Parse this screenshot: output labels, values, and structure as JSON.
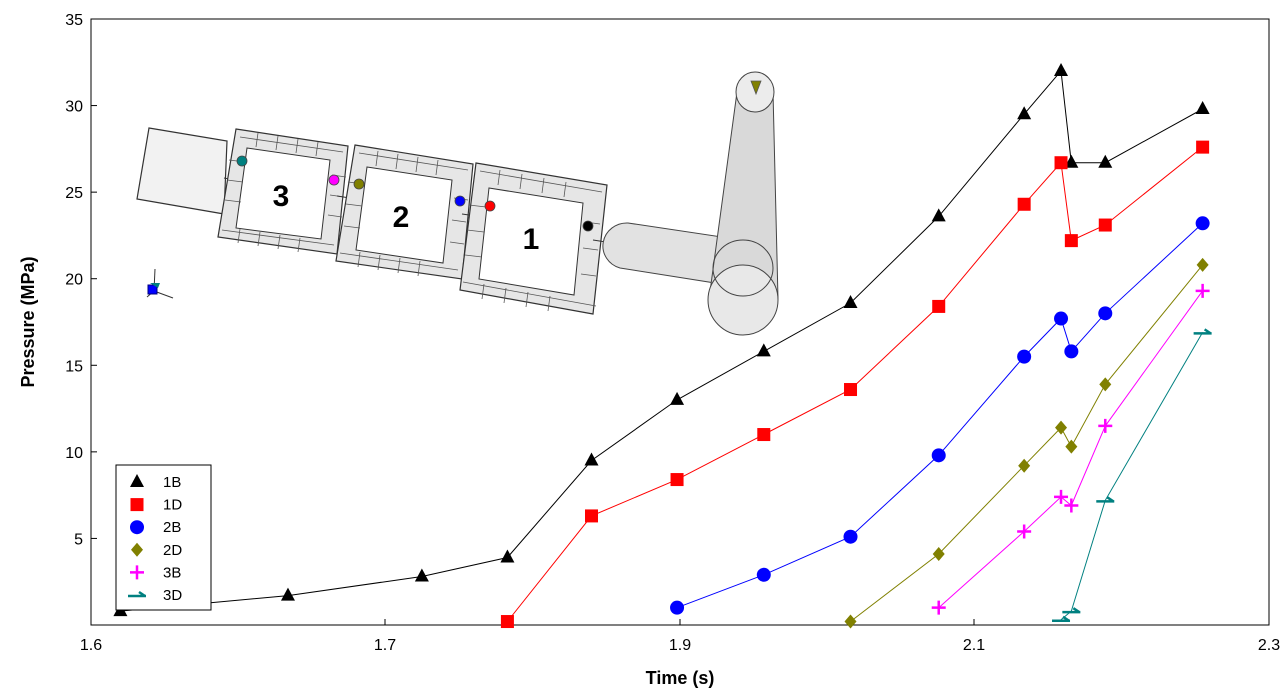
{
  "chart_data": {
    "type": "line",
    "title": "",
    "xlabel": "Time (s)",
    "ylabel": "Pressure (MPa)",
    "xlim": [
      1.6,
      2.3
    ],
    "ylim": [
      0,
      35
    ],
    "xticks": [
      "1.6",
      "1.7",
      "1.9",
      "2.1",
      "2.3"
    ],
    "xtick_values": [
      1.6,
      1.7,
      1.9,
      2.1,
      2.3
    ],
    "yticks": [
      "5",
      "10",
      "15",
      "20",
      "25",
      "30",
      "35"
    ],
    "ytick_values": [
      5,
      10,
      15,
      20,
      25,
      30,
      35
    ],
    "grid": false,
    "legend_position": "bottom-left",
    "series": [
      {
        "name": "1B",
        "color": "#000000",
        "marker": "triangle",
        "x": [
          1.61,
          1.667,
          1.725,
          1.783,
          1.84,
          1.898,
          1.957,
          2.016,
          2.076,
          2.134,
          2.159,
          2.166,
          2.189,
          2.255
        ],
        "y": [
          0.8,
          1.7,
          2.8,
          3.9,
          9.5,
          13.0,
          15.8,
          18.6,
          23.6,
          29.5,
          32.0,
          26.7,
          26.7,
          29.8
        ]
      },
      {
        "name": "1D",
        "color": "#FF0000",
        "marker": "square",
        "x": [
          1.783,
          1.84,
          1.898,
          1.957,
          2.016,
          2.076,
          2.134,
          2.159,
          2.166,
          2.189,
          2.255
        ],
        "y": [
          0.2,
          6.3,
          8.4,
          11.0,
          13.6,
          18.4,
          24.3,
          26.7,
          22.2,
          23.1,
          27.6
        ]
      },
      {
        "name": "2B",
        "color": "#0000FF",
        "marker": "circle",
        "x": [
          1.898,
          1.957,
          2.016,
          2.076,
          2.134,
          2.159,
          2.166,
          2.189,
          2.255
        ],
        "y": [
          1.0,
          2.9,
          5.1,
          9.8,
          15.5,
          17.7,
          15.8,
          18.0,
          23.2
        ]
      },
      {
        "name": "2D",
        "color": "#808000",
        "marker": "diamond",
        "x": [
          2.016,
          2.076,
          2.134,
          2.159,
          2.166,
          2.189,
          2.255
        ],
        "y": [
          0.2,
          4.1,
          9.2,
          11.4,
          10.3,
          13.9,
          20.8
        ]
      },
      {
        "name": "3B",
        "color": "#FF00FF",
        "marker": "plus",
        "x": [
          2.076,
          2.134,
          2.159,
          2.166,
          2.189,
          2.255
        ],
        "y": [
          1.0,
          5.4,
          7.4,
          6.9,
          11.5,
          19.3
        ]
      },
      {
        "name": "3D",
        "color": "#008080",
        "marker": "flag",
        "x": [
          2.159,
          2.166,
          2.189,
          2.255
        ],
        "y": [
          0.3,
          0.8,
          7.2,
          16.9
        ]
      }
    ]
  },
  "schematic": {
    "chamber_labels": [
      "3",
      "2",
      "1"
    ]
  }
}
